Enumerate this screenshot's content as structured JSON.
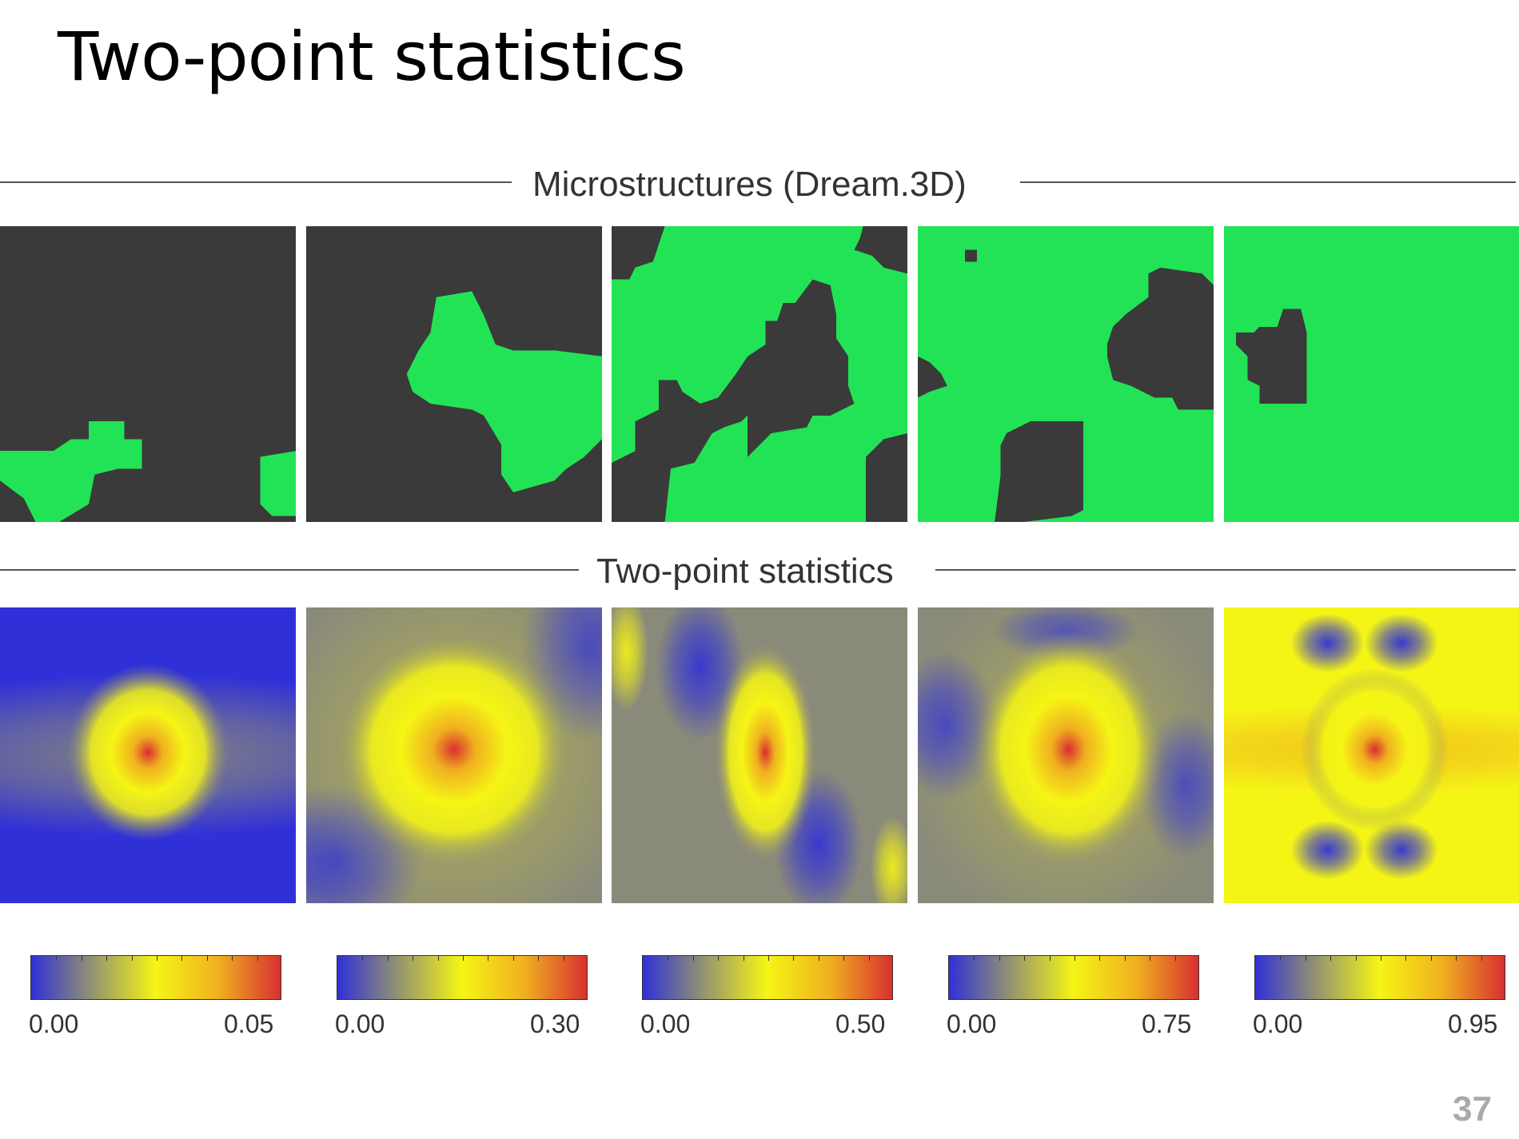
{
  "slide": {
    "title": "Two-point statistics",
    "page_number": "37"
  },
  "sections": {
    "microstructures": "Microstructures (Dream.3D)",
    "statistics": "Two-point statistics"
  },
  "colors": {
    "phase_dark": "#3a3a3a",
    "phase_green": "#22e355",
    "colormap": [
      "#3030d8",
      "#8a8a7a",
      "#f5f515",
      "#f0b020",
      "#d83030"
    ],
    "rule": "#555555",
    "page_number": "#aaaaaa"
  },
  "colorbars": [
    {
      "min": "0.00",
      "max": "0.05"
    },
    {
      "min": "0.00",
      "max": "0.30"
    },
    {
      "min": "0.00",
      "max": "0.50"
    },
    {
      "min": "0.00",
      "max": "0.75"
    },
    {
      "min": "0.00",
      "max": "0.95"
    }
  ]
}
